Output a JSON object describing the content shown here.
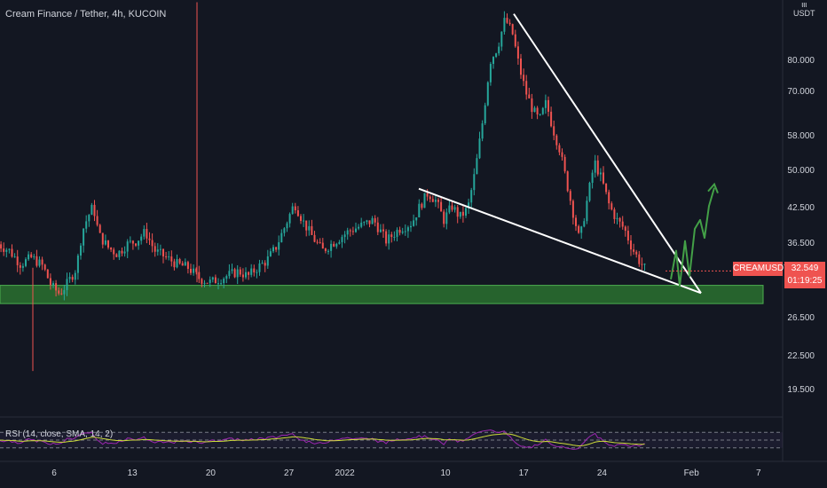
{
  "header": {
    "title": "Cream Finance / Tether, 4h, KUCOIN"
  },
  "axis": {
    "unit_line1": "ιιι",
    "unit_line2": "USDT"
  },
  "colors": {
    "background": "#131722",
    "up": "#26a69a",
    "down": "#ef5350",
    "zone_fill": "#2e7d32",
    "zone_border": "#4caf50",
    "trendline": "#ffffff",
    "projection": "#43a047",
    "rsi_line": "#9c27b0",
    "rsi_sma": "#cddc39"
  },
  "price_badge": {
    "symbol": "CREAMUSDT",
    "price": "32.549",
    "countdown": "01:19:25"
  },
  "rsi": {
    "label": "RSI (14, close, SMA, 14, 2)",
    "levels": [
      70,
      50,
      30
    ]
  },
  "chart_data": {
    "type": "candlestick",
    "title": "Cream Finance / Tether, 4h, KUCOIN",
    "y_scale": "log",
    "ylim": [
      17.4,
      104
    ],
    "y_ticks": [
      "80.000",
      "70.000",
      "58.000",
      "50.000",
      "42.500",
      "36.500",
      "26.500",
      "22.500",
      "19.500"
    ],
    "y_tick_values": [
      80,
      70,
      58,
      50,
      42.5,
      36.5,
      26.5,
      22.5,
      19.5
    ],
    "x_ticks": [
      "6",
      "13",
      "20",
      "27",
      "2022",
      "10",
      "17",
      "24",
      "Feb",
      "7"
    ],
    "last_price": 32.549,
    "support_zone": [
      28.3,
      30.6
    ],
    "series": [
      {
        "start": "2021-12-01",
        "end": "2021-12-05",
        "values": [
          36.5,
          35.5,
          33.5,
          34.5,
          33.2
        ]
      },
      {
        "start": "2021-12-05",
        "end": "2021-12-08",
        "values": [
          33.2,
          30.5,
          29.5,
          31.0,
          33.0
        ]
      },
      {
        "start": "2021-12-08",
        "end": "2021-12-10",
        "values": [
          33.0,
          38.5,
          41.0,
          43.0,
          38.0
        ]
      },
      {
        "start": "2021-12-10",
        "end": "2021-12-15",
        "values": [
          38.0,
          36.0,
          35.0,
          36.5,
          37.0,
          38.5,
          35.5
        ]
      },
      {
        "start": "2021-12-15",
        "end": "2021-12-20",
        "values": [
          35.5,
          34.5,
          33.5,
          33.0,
          31.5,
          31.0
        ]
      },
      {
        "start": "2021-12-20",
        "end": "2021-12-25",
        "values": [
          31.0,
          31.5,
          32.0,
          32.5,
          31.8,
          33.0,
          34.0
        ]
      },
      {
        "start": "2021-12-25",
        "end": "2021-12-30",
        "values": [
          34.0,
          36.0,
          39.5,
          43.5,
          40.0,
          37.5,
          35.5
        ]
      },
      {
        "start": "2021-12-30",
        "end": "2022-01-07",
        "values": [
          35.5,
          37.0,
          38.5,
          39.5,
          40.5,
          37.0,
          39.0,
          40.0
        ]
      },
      {
        "start": "2022-01-07",
        "end": "2022-01-12",
        "values": [
          40.0,
          43.0,
          45.5,
          44.0,
          40.5,
          43.0,
          41.0,
          42.5
        ]
      },
      {
        "start": "2022-01-12",
        "end": "2022-01-16",
        "values": [
          42.5,
          50.0,
          62.0,
          80.0,
          85.0,
          96.0,
          90.0
        ]
      },
      {
        "start": "2022-01-16",
        "end": "2022-01-22",
        "values": [
          90.0,
          78.0,
          70.0,
          65.0,
          62.0,
          67.0,
          60.0,
          55.0,
          48.0,
          42.0,
          37.0
        ]
      },
      {
        "start": "2022-01-22",
        "end": "2022-01-28",
        "values": [
          37.0,
          44.0,
          52.0,
          48.0,
          43.0,
          40.5,
          39.0,
          36.0,
          34.0,
          32.549
        ]
      }
    ],
    "rsi_value": 44
  }
}
